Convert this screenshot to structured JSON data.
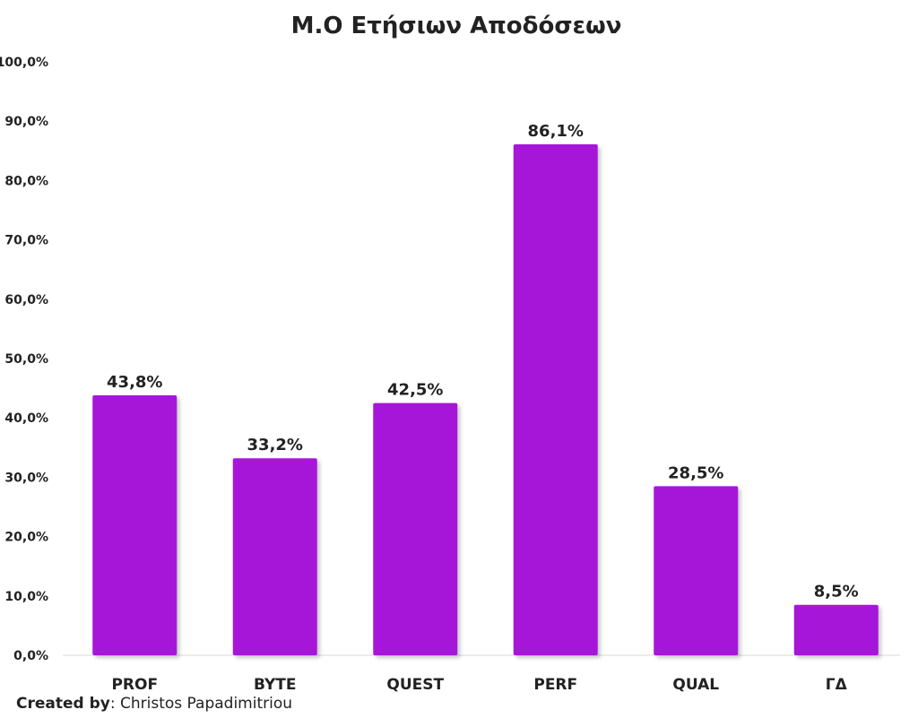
{
  "chart_data": {
    "type": "bar",
    "title": "Μ.Ο Ετήσιων Αποδόσεων",
    "categories": [
      "PROF",
      "BYTE",
      "QUEST",
      "PERF",
      "QUAL",
      "ΓΔ"
    ],
    "values": [
      43.8,
      33.2,
      42.5,
      86.1,
      28.5,
      8.5
    ],
    "data_labels": [
      "43,8%",
      "33,2%",
      "42,5%",
      "86,1%",
      "28,5%",
      "8,5%"
    ],
    "yticks": [
      "0,0%",
      "10,0%",
      "20,0%",
      "30,0%",
      "40,0%",
      "50,0%",
      "60,0%",
      "70,0%",
      "80,0%",
      "90,0%",
      "100,0%"
    ],
    "ylim": [
      0,
      100
    ],
    "xlabel": "",
    "ylabel": "",
    "grid": false,
    "bar_color": "#a614d9"
  },
  "footer": {
    "created_by_label": "Created by",
    "separator": ": ",
    "author": "Christos Papadimitriou"
  }
}
